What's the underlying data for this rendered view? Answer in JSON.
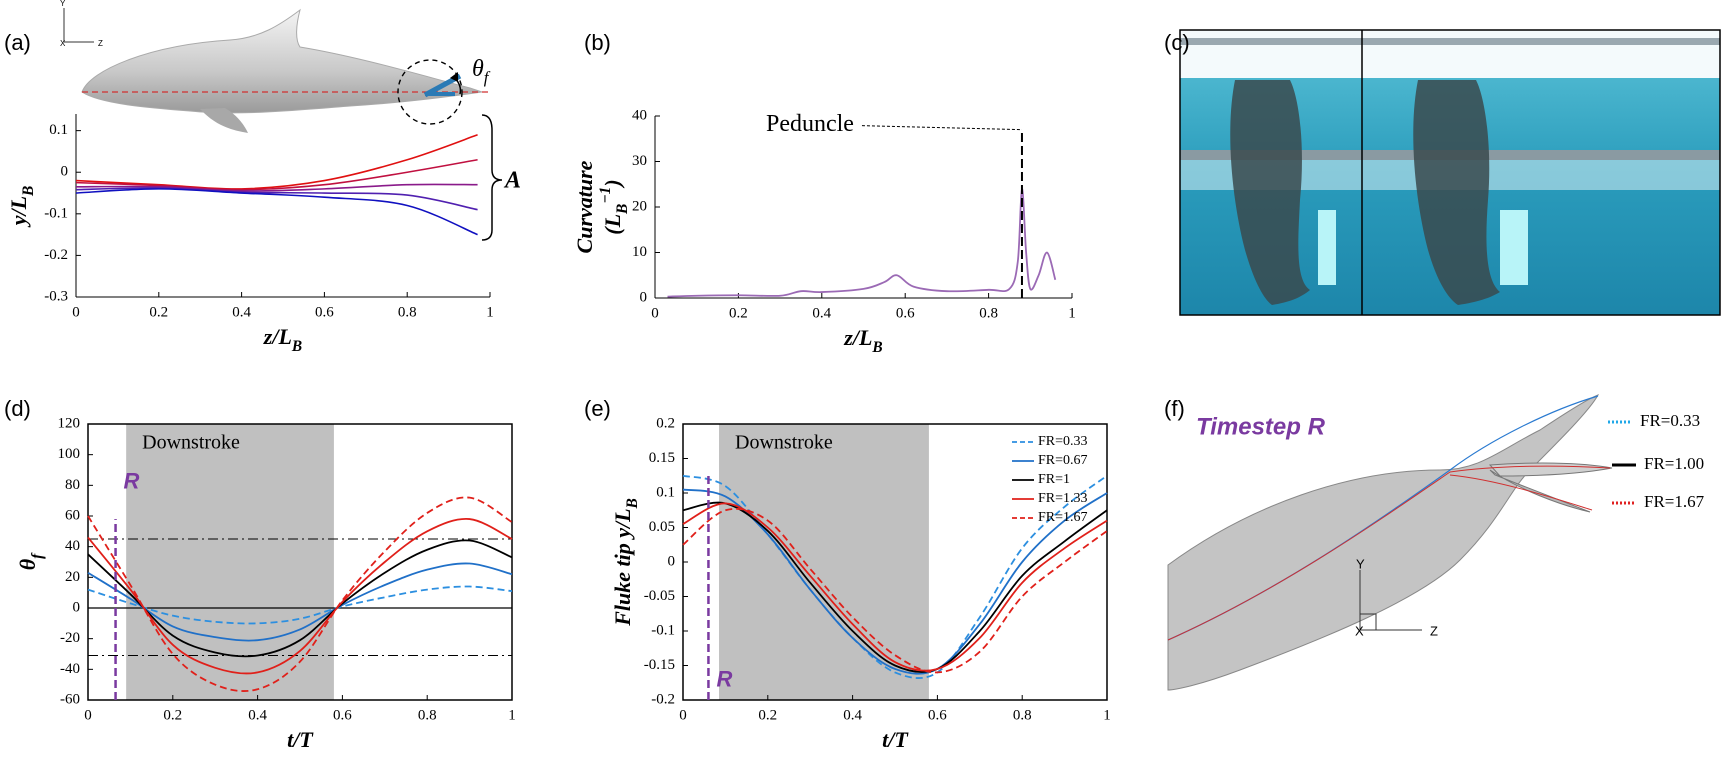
{
  "panel_labels": [
    "(a)",
    "(b)",
    "(c)",
    "(d)",
    "(e)",
    "(f)"
  ],
  "panel_a": {
    "axes": [
      "Y",
      "X",
      "Z"
    ],
    "angle": [
      {
        "text": "θ"
      },
      {
        "text": "f",
        "style": "sub"
      }
    ],
    "amplitude": "A"
  },
  "panel_f": {
    "title": "Timestep R",
    "labels": [
      "FR=0.33",
      "FR=1.00",
      "FR=1.67"
    ],
    "axes": [
      "Y",
      "X",
      "Z"
    ]
  },
  "chart_data": [
    {
      "type": "line",
      "frame": "axes",
      "xlabel": [
        {
          "text": "z/L"
        },
        {
          "text": "B",
          "style": "sub"
        }
      ],
      "ylabel": [
        {
          "text": "y/L"
        },
        {
          "text": "B",
          "style": "sub"
        }
      ],
      "xlim": [
        0,
        1
      ],
      "ylim": [
        -0.3,
        0.14
      ],
      "xticks": [
        0,
        0.2,
        0.4,
        0.6,
        0.8,
        1
      ],
      "yticks": [
        -0.3,
        -0.2,
        -0.1,
        0,
        0.1
      ],
      "x": [
        0,
        0.2,
        0.4,
        0.6,
        0.8,
        0.97
      ],
      "series": [
        {
          "color": "#e01010",
          "values": [
            -0.02,
            -0.03,
            -0.04,
            -0.02,
            0.03,
            0.09
          ]
        },
        {
          "color": "#c01040",
          "values": [
            -0.025,
            -0.032,
            -0.042,
            -0.03,
            0.0,
            0.03
          ]
        },
        {
          "color": "#8a1a8a",
          "values": [
            -0.035,
            -0.035,
            -0.045,
            -0.04,
            -0.03,
            -0.03
          ]
        },
        {
          "color": "#5020b0",
          "values": [
            -0.042,
            -0.038,
            -0.048,
            -0.05,
            -0.055,
            -0.09
          ]
        },
        {
          "color": "#1010c0",
          "values": [
            -0.05,
            -0.04,
            -0.05,
            -0.06,
            -0.08,
            -0.15
          ]
        }
      ]
    },
    {
      "type": "line",
      "frame": "axes",
      "xlabel": [
        {
          "text": "z/L"
        },
        {
          "text": "B",
          "style": "sub"
        }
      ],
      "ylabel": [
        {
          "text": "Curvature"
        }
      ],
      "ylabel2": [
        {
          "text": "(L"
        },
        {
          "text": "B",
          "style": "sub"
        },
        {
          "text": "−1",
          "style": "super"
        },
        {
          "text": ")"
        }
      ],
      "xlim": [
        0,
        1
      ],
      "ylim": [
        0,
        40
      ],
      "xticks": [
        0,
        0.2,
        0.4,
        0.6,
        0.8,
        1
      ],
      "yticks": [
        0,
        10,
        20,
        30,
        40
      ],
      "x": [
        0.03,
        0.1,
        0.2,
        0.3,
        0.35,
        0.4,
        0.5,
        0.55,
        0.58,
        0.62,
        0.7,
        0.8,
        0.85,
        0.87,
        0.88,
        0.89,
        0.9,
        0.92,
        0.94,
        0.96
      ],
      "series": [
        {
          "color": "#9b6ab5",
          "values": [
            0.3,
            0.5,
            0.6,
            0.5,
            1.5,
            1.3,
            2,
            3.5,
            5,
            2.5,
            1.5,
            1.8,
            2,
            8,
            24,
            10,
            2,
            5,
            10,
            4
          ]
        }
      ],
      "annotation": {
        "text": "Peduncle",
        "x": 0.88,
        "y": 37
      }
    },
    {
      "type": "line",
      "frame": "box",
      "xlabel": [
        {
          "text": "t/T"
        }
      ],
      "ylabel": [
        {
          "text": "θ"
        },
        {
          "text": "f",
          "style": "sub"
        }
      ],
      "xlim": [
        0,
        1
      ],
      "ylim": [
        -60,
        120
      ],
      "xticks": [
        0,
        0.2,
        0.4,
        0.6,
        0.8,
        1
      ],
      "yticks": [
        -60,
        -40,
        -20,
        0,
        20,
        40,
        60,
        80,
        100,
        120
      ],
      "shade": {
        "x": [
          0.09,
          0.58
        ],
        "label": "Downstroke"
      },
      "reference_lines": [
        45,
        -31
      ],
      "zero_line": true,
      "marker": {
        "x": 0.065,
        "top": 58,
        "label": "R"
      },
      "x": [
        0,
        0.1,
        0.2,
        0.3,
        0.4,
        0.5,
        0.6,
        0.7,
        0.8,
        0.9,
        1
      ],
      "series": [
        {
          "color": "#2c8fe0",
          "dash": true,
          "values": [
            12,
            3,
            -5,
            -9,
            -10,
            -7,
            1,
            7,
            12,
            14,
            11
          ]
        },
        {
          "color": "#2070c8",
          "values": [
            23,
            6,
            -12,
            -19,
            -21,
            -14,
            2,
            15,
            25,
            29,
            22
          ]
        },
        {
          "color": "#000000",
          "values": [
            35,
            9,
            -18,
            -29,
            -31,
            -21,
            3,
            23,
            38,
            44,
            33
          ]
        },
        {
          "color": "#e0201a",
          "values": [
            46,
            12,
            -24,
            -39,
            -42,
            -28,
            4,
            30,
            50,
            58,
            45
          ]
        },
        {
          "color": "#e0201a",
          "dash": true,
          "values": [
            60,
            15,
            -30,
            -50,
            -53,
            -35,
            5,
            37,
            62,
            72,
            56
          ]
        }
      ]
    },
    {
      "type": "line",
      "frame": "box",
      "legend": "upper right",
      "xlabel": [
        {
          "text": "t/T"
        }
      ],
      "ylabel": [
        {
          "text": "Fluke tip y/L"
        },
        {
          "text": "B",
          "style": "sub"
        }
      ],
      "xlim": [
        0,
        1
      ],
      "ylim": [
        -0.2,
        0.2
      ],
      "xticks": [
        0,
        0.2,
        0.4,
        0.6,
        0.8,
        1
      ],
      "yticks": [
        -0.2,
        -0.15,
        -0.1,
        -0.05,
        0,
        0.05,
        0.1,
        0.15,
        0.2
      ],
      "shade": {
        "x": [
          0.085,
          0.58
        ],
        "label": "Downstroke"
      },
      "marker": {
        "x": 0.06,
        "top": 0.125,
        "label": "R"
      },
      "x": [
        0,
        0.1,
        0.2,
        0.3,
        0.4,
        0.5,
        0.6,
        0.7,
        0.8,
        0.9,
        1
      ],
      "series": [
        {
          "name": "FR=0.33",
          "color": "#2c8fe0",
          "dash": true,
          "values": [
            0.125,
            0.11,
            0.04,
            -0.04,
            -0.11,
            -0.16,
            -0.16,
            -0.08,
            0.02,
            0.08,
            0.125
          ]
        },
        {
          "name": "FR=0.67",
          "color": "#2070c8",
          "values": [
            0.105,
            0.095,
            0.04,
            -0.04,
            -0.11,
            -0.155,
            -0.155,
            -0.09,
            0.0,
            0.06,
            0.1
          ]
        },
        {
          "name": "FR=1",
          "color": "#000000",
          "values": [
            0.075,
            0.085,
            0.045,
            -0.03,
            -0.1,
            -0.15,
            -0.155,
            -0.1,
            -0.02,
            0.03,
            0.075
          ]
        },
        {
          "name": "FR=1.33",
          "color": "#e0201a",
          "values": [
            0.055,
            0.085,
            0.05,
            -0.02,
            -0.09,
            -0.145,
            -0.155,
            -0.11,
            -0.03,
            0.02,
            0.06
          ]
        },
        {
          "name": "FR=1.67",
          "color": "#e0201a",
          "dash": true,
          "values": [
            0.025,
            0.075,
            0.06,
            -0.01,
            -0.08,
            -0.135,
            -0.16,
            -0.13,
            -0.05,
            0.0,
            0.045
          ]
        }
      ]
    }
  ]
}
